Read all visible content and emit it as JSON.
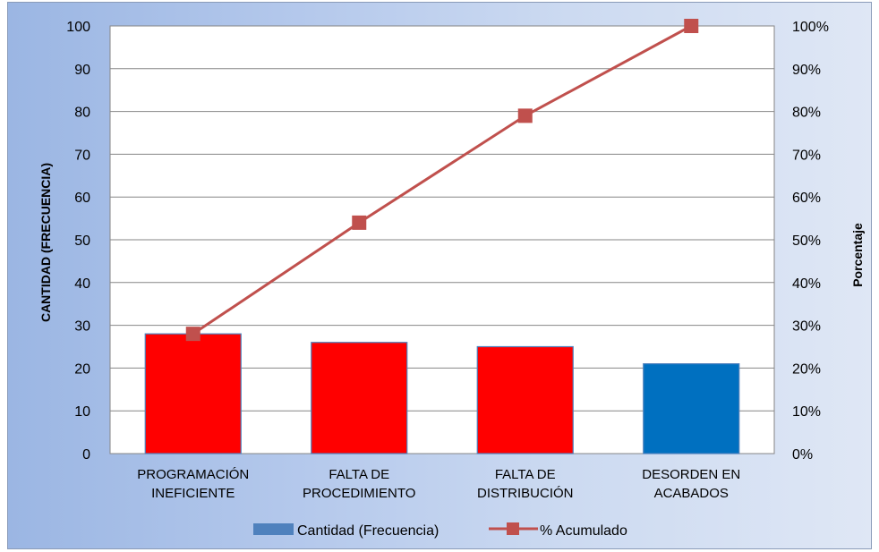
{
  "chart_data": {
    "type": "bar",
    "categories": [
      [
        "PROGRAMACIÓN",
        "INEFICIENTE"
      ],
      [
        "FALTA DE",
        "PROCEDIMIENTO"
      ],
      [
        "FALTA DE",
        "DISTRIBUCIÓN"
      ],
      [
        "DESORDEN EN",
        "ACABADOS"
      ]
    ],
    "series": [
      {
        "name": "Cantidad (Frecuencia)",
        "type": "bar",
        "axis": "left",
        "values": [
          28,
          26,
          25,
          21
        ],
        "colors": [
          "#ff0000",
          "#ff0000",
          "#ff0000",
          "#0070c0"
        ]
      },
      {
        "name": "% Acumulado",
        "type": "line",
        "axis": "right",
        "values": [
          28,
          54,
          79,
          100
        ],
        "color": "#c0504d"
      }
    ],
    "ylabel": "CANTIDAD (FRECUENCIA)",
    "y2label": "Porcentaje",
    "ylim": [
      0,
      100
    ],
    "y2lim": [
      0,
      100
    ],
    "yticks": [
      "0",
      "10",
      "20",
      "30",
      "40",
      "50",
      "60",
      "70",
      "80",
      "90",
      "100"
    ],
    "y2ticks": [
      "0%",
      "10%",
      "20%",
      "30%",
      "40%",
      "50%",
      "60%",
      "70%",
      "80%",
      "90%",
      "100%"
    ],
    "grid": true,
    "legend_position": "bottom",
    "legend_bar_color": "#4f81bd",
    "bar_outline_color": "#4f81bd",
    "grid_color": "#868686",
    "plot_background": "#ffffff"
  }
}
